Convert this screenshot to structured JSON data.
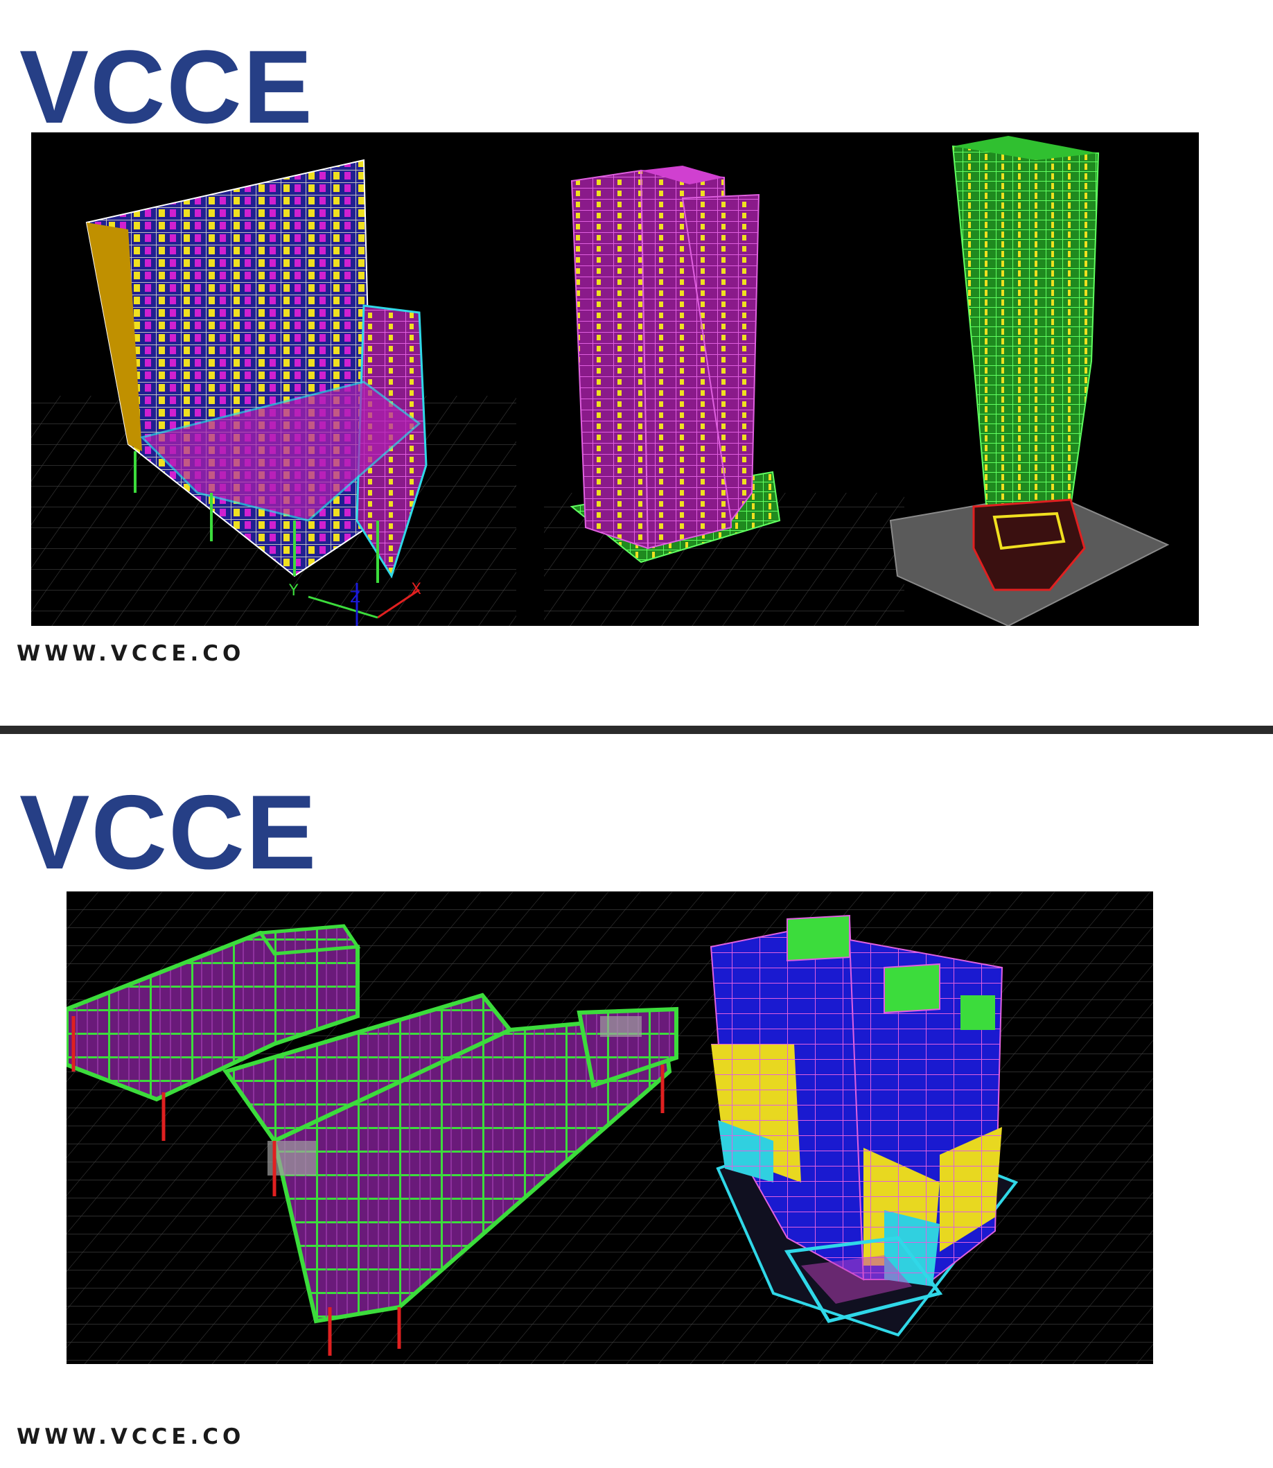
{
  "section_top": {
    "brand": "VCCE",
    "website": "WWW.VCCE.CO",
    "render_labels": {
      "axis_y": "Y",
      "axis_z": "Z",
      "axis_x": "X"
    }
  },
  "section_bottom": {
    "brand": "VCCE",
    "website": "WWW.VCCE.CO"
  },
  "colors": {
    "brand_blue": "#263f86",
    "text_dark": "#1a1a1a",
    "divider": "#2b2b2b",
    "render_background": "#000000",
    "frame_green": "#3cdc3c",
    "frame_magenta": "#c040c0",
    "frame_yellow": "#f0e020",
    "frame_blue": "#1a1ad8",
    "frame_cyan": "#30d8e8",
    "frame_red": "#e02020"
  }
}
